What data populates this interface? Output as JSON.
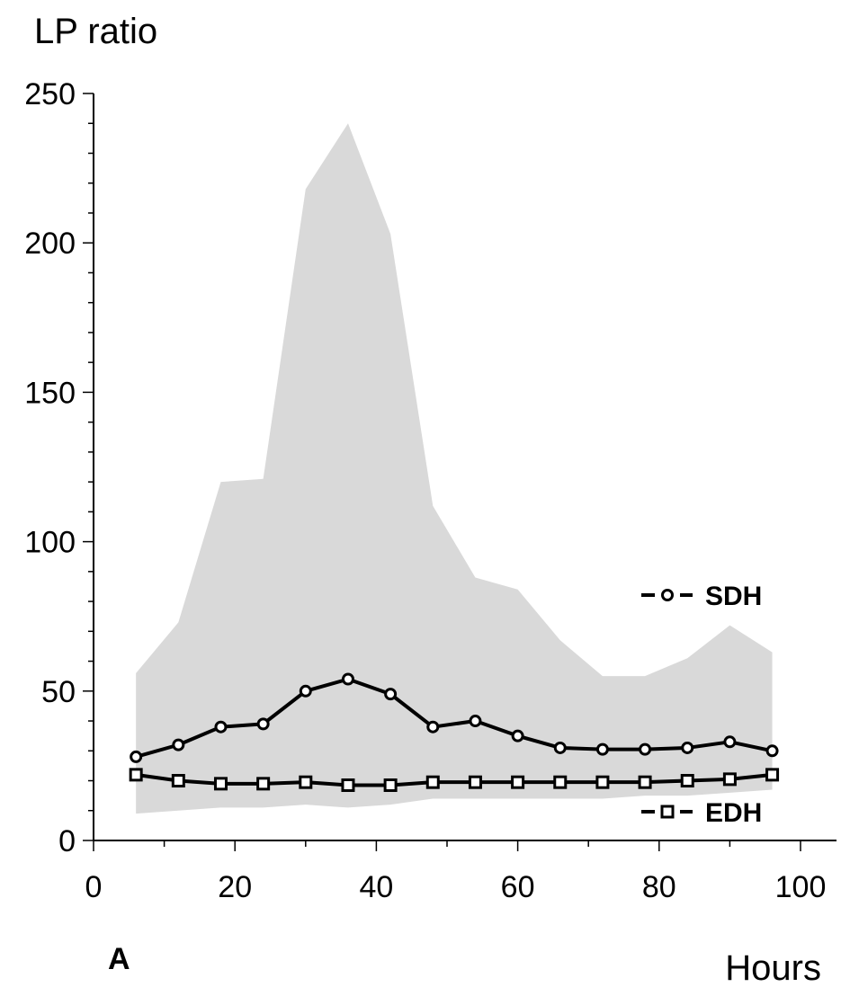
{
  "chart_data": {
    "type": "line",
    "ylabel": "LP ratio",
    "xlabel": "Hours",
    "panel_label": "A",
    "xlim": [
      0,
      100
    ],
    "ylim": [
      0,
      250
    ],
    "xticks": [
      0,
      20,
      40,
      60,
      80,
      100
    ],
    "yticks": [
      0,
      50,
      100,
      150,
      200,
      250
    ],
    "grid": false,
    "legend_placement": "right, beside series",
    "x": [
      6,
      12,
      18,
      24,
      30,
      36,
      42,
      48,
      54,
      60,
      66,
      72,
      78,
      84,
      90,
      96
    ],
    "series": [
      {
        "name": "SDH",
        "marker": "circle",
        "values": [
          28,
          32,
          38,
          39,
          50,
          54,
          49,
          38,
          40,
          35,
          31,
          30.5,
          30.5,
          31,
          33,
          30
        ]
      },
      {
        "name": "EDH",
        "marker": "square",
        "values": [
          22,
          20,
          19,
          19,
          19.5,
          18.5,
          18.5,
          19.5,
          19.5,
          19.5,
          19.5,
          19.5,
          19.5,
          20,
          20.5,
          22
        ]
      }
    ],
    "range_band": {
      "color": "#d9d9d9",
      "upper": [
        56,
        73,
        120,
        121,
        218,
        240,
        203,
        112,
        88,
        84,
        67,
        55,
        55,
        61,
        72,
        63
      ],
      "lower": [
        9,
        10,
        11,
        11,
        12,
        11,
        12,
        14,
        14,
        14,
        14,
        14,
        15,
        15,
        16,
        17
      ]
    }
  }
}
